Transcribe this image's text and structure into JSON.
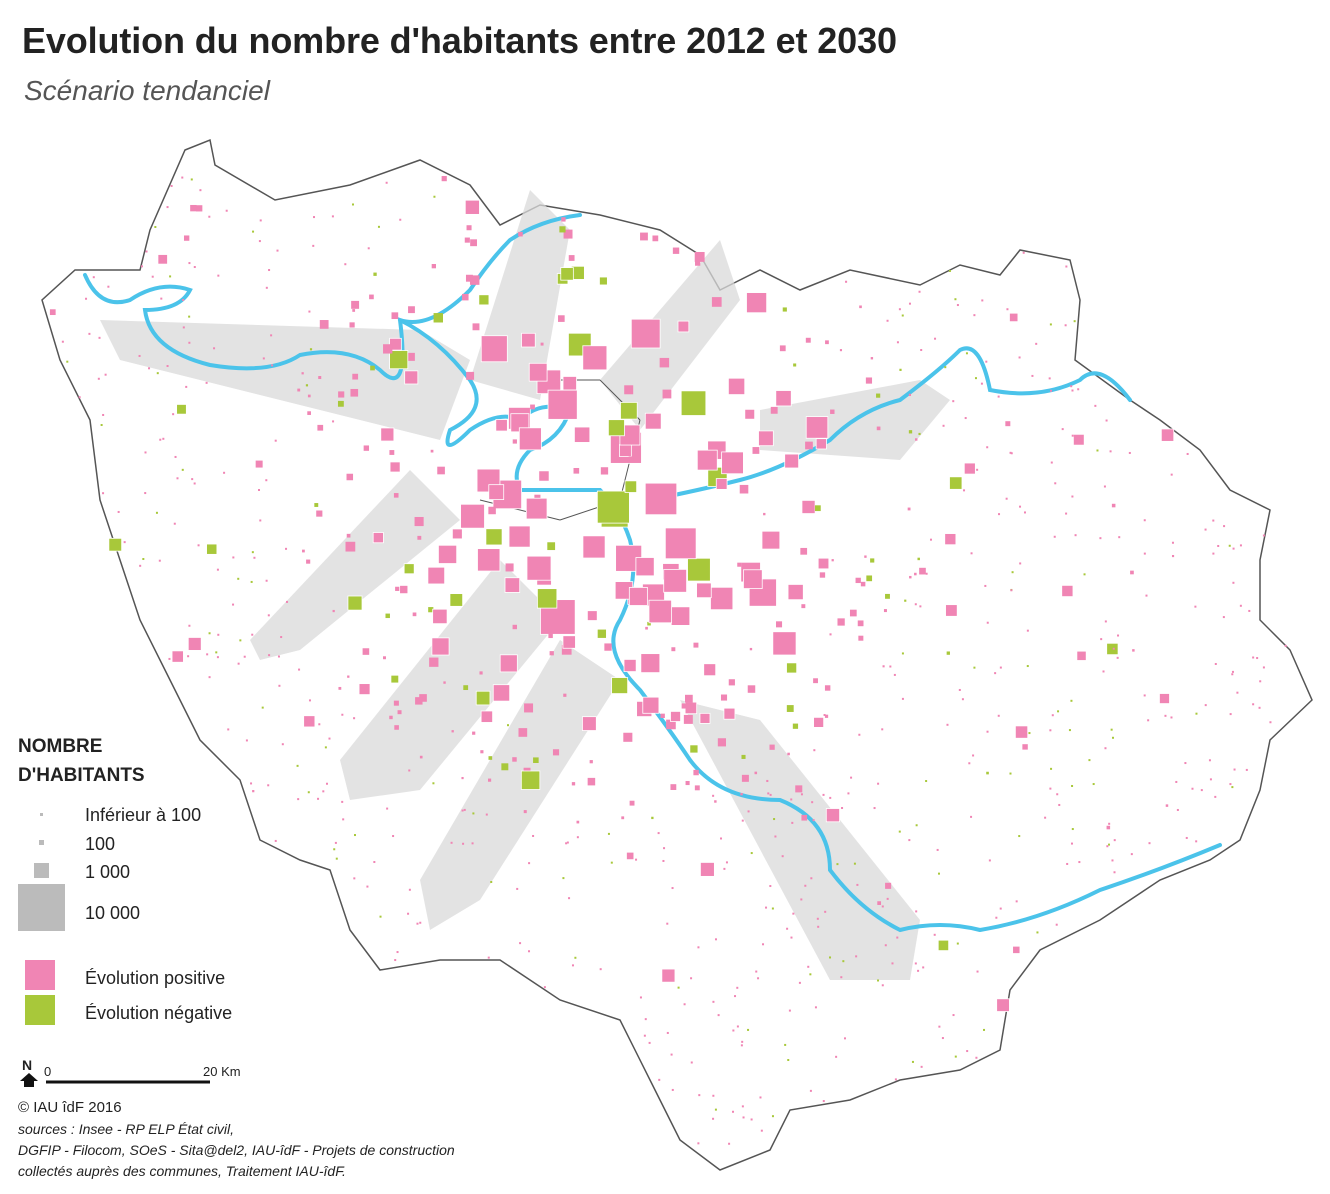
{
  "header": {
    "title": "Evolution du nombre d'habitants entre 2012 et 2030",
    "subtitle": "Scénario tendanciel"
  },
  "legend": {
    "title_lines": [
      "NOMBRE",
      "D'HABITANTS"
    ],
    "sizes": [
      "Inférieur à 100",
      "100",
      "1 000",
      "10 000"
    ],
    "colors": [
      {
        "label": "Évolution positive",
        "color": "#f085b4"
      },
      {
        "label": "Évolution négative",
        "color": "#a8c83a"
      }
    ]
  },
  "scale": {
    "north": "N",
    "start": "0",
    "end": "20 Km"
  },
  "credits": {
    "copyright": "© IAU îdF 2016",
    "sources": [
      "sources : Insee - RP ELP État civil,",
      "DGFIP -  Filocom, SOeS - Sita@del2, IAU-îdF - Projets de construction",
      "collectés auprès des communes, Traitement IAU-îdF."
    ]
  }
}
